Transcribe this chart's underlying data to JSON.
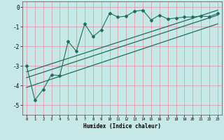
{
  "title": "",
  "xlabel": "Humidex (Indice chaleur)",
  "ylabel": "",
  "xlim": [
    -0.5,
    23.5
  ],
  "ylim": [
    -5.5,
    0.3
  ],
  "yticks": [
    0,
    -1,
    -2,
    -3,
    -4,
    -5
  ],
  "xticks": [
    0,
    1,
    2,
    3,
    4,
    5,
    6,
    7,
    8,
    9,
    10,
    11,
    12,
    13,
    14,
    15,
    16,
    17,
    18,
    19,
    20,
    21,
    22,
    23
  ],
  "bg_color": "#c6e8e6",
  "grid_color": "#e0a0a0",
  "line_color": "#1a7060",
  "line_data_x": [
    0,
    1,
    2,
    3,
    4,
    5,
    6,
    7,
    8,
    9,
    10,
    11,
    12,
    13,
    14,
    15,
    16,
    17,
    18,
    19,
    20,
    21,
    22,
    23
  ],
  "line_data_y": [
    -3.0,
    -4.75,
    -4.2,
    -3.45,
    -3.5,
    -1.75,
    -2.25,
    -0.85,
    -1.5,
    -1.15,
    -0.3,
    -0.5,
    -0.45,
    -0.2,
    -0.15,
    -0.65,
    -0.4,
    -0.6,
    -0.55,
    -0.5,
    -0.5,
    -0.45,
    -0.48,
    -0.32
  ],
  "trend1_x": [
    0,
    23
  ],
  "trend1_y": [
    -3.3,
    -0.15
  ],
  "trend2_x": [
    0,
    23
  ],
  "trend2_y": [
    -3.6,
    -0.4
  ],
  "trend3_x": [
    0,
    23
  ],
  "trend3_y": [
    -4.1,
    -0.85
  ]
}
